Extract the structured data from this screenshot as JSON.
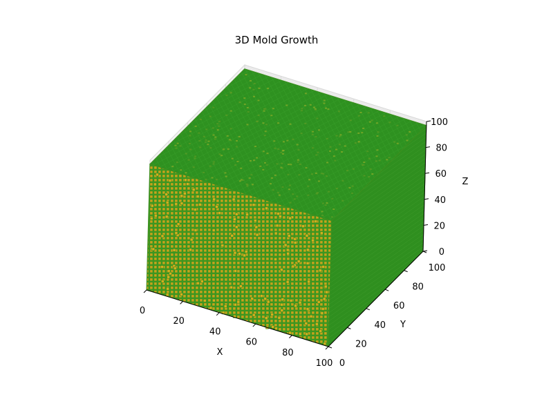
{
  "chart_data": {
    "type": "voxel-3d",
    "title": "3D Mold Growth",
    "xlabel": "X",
    "ylabel": "Y",
    "zlabel": "Z",
    "xlim": [
      0,
      100
    ],
    "ylim": [
      0,
      100
    ],
    "zlim": [
      0,
      100
    ],
    "x_ticks": [
      "0",
      "20",
      "40",
      "60",
      "80",
      "100"
    ],
    "y_ticks": [
      "0",
      "20",
      "40",
      "60",
      "80",
      "100"
    ],
    "z_ticks": [
      "0",
      "20",
      "40",
      "60",
      "80",
      "100"
    ],
    "grid": true,
    "legend": "none",
    "colors": {
      "voxel_face": "#2e8b1e",
      "voxel_edge": "#c9a21a",
      "pane": "#f2f2f2",
      "grid": "#d8d8d8"
    },
    "fill_fraction": 0.85
  }
}
